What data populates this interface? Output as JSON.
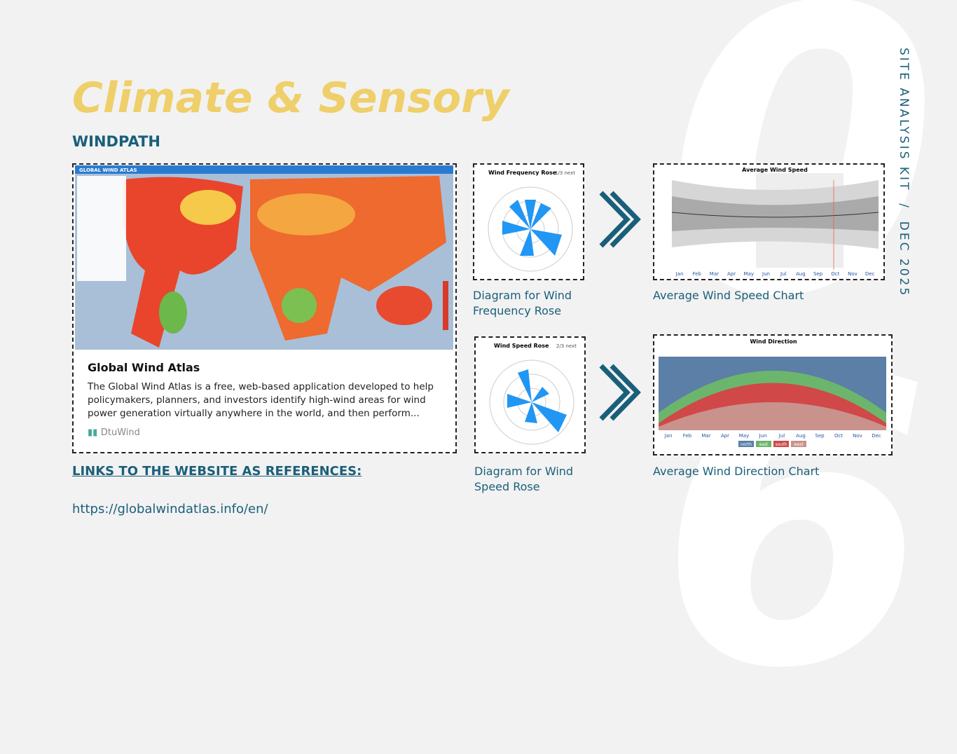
{
  "header": {
    "title": "Climate & Sensory",
    "subtitle": "WINDPATH",
    "side_text": "SITE ANALYSIS KIT  /  DEC 2025",
    "watermark": [
      "0",
      "6"
    ]
  },
  "card": {
    "map_header": "GLOBAL WIND ATLAS",
    "title": "Global Wind Atlas",
    "description": "The Global Wind Atlas is a free, web-based application developed to help policymakers, planners, and investors identify high-wind areas for wind power generation virtually anywhere in the world, and then perform...",
    "source": "DtuWind"
  },
  "links": {
    "heading": "LINKS TO THE WEBSITE AS REFERENCES:",
    "url": "https://globalwindatlas.info/en/"
  },
  "panels": [
    {
      "caption": "Diagram for Wind Frequency Rose",
      "title": "Wind Frequency Rose",
      "nav": "1/3 next"
    },
    {
      "caption": "Average Wind Speed Chart",
      "title": "Average Wind Speed"
    },
    {
      "caption": "Diagram for Wind Speed Rose",
      "title": "Wind Speed Rose",
      "nav": "2/3 next"
    },
    {
      "caption": "Average Wind Direction Chart",
      "title": "Wind Direction",
      "legend": [
        "north",
        "east",
        "south",
        "west"
      ]
    }
  ],
  "months": [
    "Jan",
    "Feb",
    "Mar",
    "Apr",
    "May",
    "Jun",
    "Jul",
    "Aug",
    "Sep",
    "Oct",
    "Nov",
    "Dec"
  ]
}
